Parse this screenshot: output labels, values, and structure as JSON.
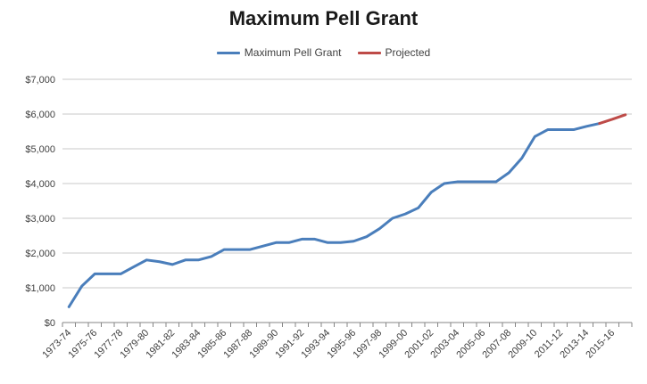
{
  "chart_data": {
    "type": "line",
    "title": "Maximum Pell Grant",
    "xlabel": "",
    "ylabel": "",
    "ylim": [
      0,
      7000
    ],
    "yticks": [
      0,
      1000,
      2000,
      3000,
      4000,
      5000,
      6000,
      7000
    ],
    "ytick_labels": [
      "$0",
      "$1,000",
      "$2,000",
      "$3,000",
      "$4,000",
      "$5,000",
      "$6,000",
      "$7,000"
    ],
    "xtick_labels": [
      "1973-74",
      "1975-76",
      "1977-78",
      "1979-80",
      "1981-82",
      "1983-84",
      "1985-86",
      "1987-88",
      "1989-90",
      "1991-92",
      "1993-94",
      "1995-96",
      "1997-98",
      "1999-00",
      "2001-02",
      "2003-04",
      "2005-06",
      "2007-08",
      "2009-10",
      "2011-12",
      "2013-14",
      "2015-16"
    ],
    "categories": [
      "1973-74",
      "1974-75",
      "1975-76",
      "1976-77",
      "1977-78",
      "1978-79",
      "1979-80",
      "1980-81",
      "1981-82",
      "1982-83",
      "1983-84",
      "1984-85",
      "1985-86",
      "1986-87",
      "1987-88",
      "1988-89",
      "1989-90",
      "1990-91",
      "1991-92",
      "1992-93",
      "1993-94",
      "1994-95",
      "1995-96",
      "1996-97",
      "1997-98",
      "1998-99",
      "1999-00",
      "2000-01",
      "2001-02",
      "2002-03",
      "2003-04",
      "2004-05",
      "2005-06",
      "2006-07",
      "2007-08",
      "2008-09",
      "2009-10",
      "2010-11",
      "2011-12",
      "2012-13",
      "2013-14",
      "2014-15",
      "2015-16",
      "2016-17"
    ],
    "grid": true,
    "legend_position": "top-center",
    "series": [
      {
        "name": "Maximum Pell Grant",
        "color": "#4a7ebb",
        "values": [
          452,
          1050,
          1400,
          1400,
          1400,
          1600,
          1800,
          1750,
          1670,
          1800,
          1800,
          1900,
          2100,
          2100,
          2100,
          2200,
          2300,
          2300,
          2400,
          2400,
          2300,
          2300,
          2340,
          2470,
          2700,
          3000,
          3125,
          3300,
          3750,
          4000,
          4050,
          4050,
          4050,
          4050,
          4310,
          4731,
          5350,
          5550,
          5550,
          5550,
          5645,
          5730,
          null,
          null
        ]
      },
      {
        "name": "Projected",
        "color": "#be4b48",
        "values": [
          null,
          null,
          null,
          null,
          null,
          null,
          null,
          null,
          null,
          null,
          null,
          null,
          null,
          null,
          null,
          null,
          null,
          null,
          null,
          null,
          null,
          null,
          null,
          null,
          null,
          null,
          null,
          null,
          null,
          null,
          null,
          null,
          null,
          null,
          null,
          null,
          null,
          null,
          null,
          null,
          null,
          5730,
          5850,
          5980
        ]
      }
    ]
  }
}
